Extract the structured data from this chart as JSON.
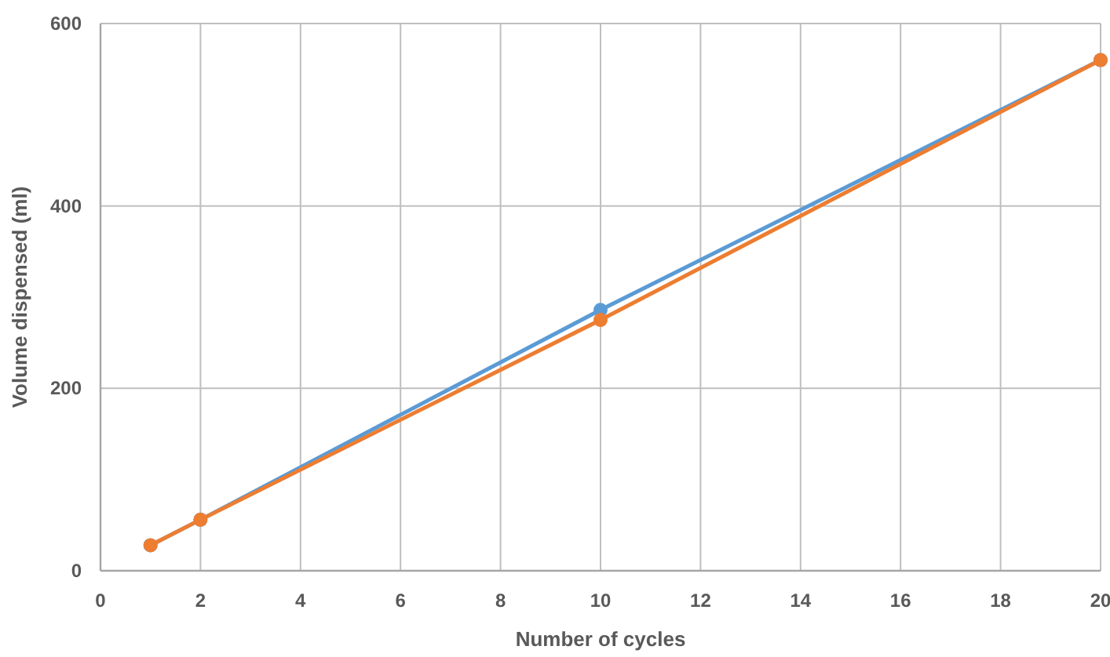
{
  "chart_data": {
    "type": "line",
    "xlabel": "Number of cycles",
    "ylabel": "Volume dispensed (ml)",
    "xlim": [
      0,
      20
    ],
    "xticks": [
      0,
      2,
      4,
      6,
      8,
      10,
      12,
      14,
      16,
      18,
      20
    ],
    "ylim": [
      0,
      600
    ],
    "yticks": [
      0,
      200,
      400,
      600
    ],
    "grid": true,
    "marker": "circle",
    "line_style": "solid",
    "series": [
      {
        "color": "#5b9bd5",
        "x": [
          1,
          2,
          10,
          20
        ],
        "values": [
          28,
          56,
          286,
          560
        ]
      },
      {
        "color": "#ed7d31",
        "x": [
          1,
          2,
          10,
          20
        ],
        "values": [
          28,
          56,
          275,
          560
        ]
      }
    ]
  }
}
